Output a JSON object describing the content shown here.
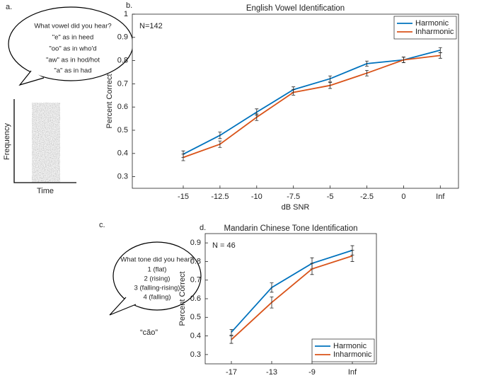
{
  "panels": {
    "a": {
      "label": "a.",
      "bubble": [
        "What vowel did you hear?",
        "\"e\" as in heed",
        "\"oo\" as in who'd",
        "\"aw\" as in hod/hot",
        "\"a\" as in had"
      ],
      "y_label": "Frequency",
      "x_label": "Time"
    },
    "c": {
      "label": "c.",
      "bubble": [
        "What tone did you hear?",
        "1 (flat)",
        "2 (rising)",
        "3 (falling-rising)",
        "4 (falling)"
      ],
      "word": "“cǎo”"
    }
  },
  "chart_data": [
    {
      "type": "line",
      "panel_label": "b.",
      "title": "English Vowel Identification",
      "x_label": "dB SNR",
      "y_label": "Percent Correct",
      "annotation": "N=142",
      "categories": [
        "-15",
        "-12.5",
        "-10",
        "-7.5",
        "-5",
        "-2.5",
        "0",
        "Inf"
      ],
      "series": [
        {
          "name": "Harmonic",
          "color": "#0072bd",
          "values": [
            0.397,
            0.478,
            0.578,
            0.675,
            0.722,
            0.787,
            0.803,
            0.845
          ],
          "errors": [
            0.014,
            0.014,
            0.014,
            0.012,
            0.012,
            0.011,
            0.012,
            0.011
          ]
        },
        {
          "name": "Inharmonic",
          "color": "#d95319",
          "values": [
            0.383,
            0.44,
            0.556,
            0.663,
            0.693,
            0.746,
            0.803,
            0.822
          ],
          "errors": [
            0.014,
            0.014,
            0.014,
            0.012,
            0.013,
            0.012,
            0.012,
            0.012
          ]
        }
      ],
      "ylim": [
        0.25,
        1
      ],
      "yticks": [
        0.3,
        0.4,
        0.5,
        0.6,
        0.7,
        0.8,
        0.9,
        1
      ],
      "legend": "upper right"
    },
    {
      "type": "line",
      "panel_label": "d.",
      "title": "Mandarin Chinese Tone Identification",
      "x_label": "dB SNR",
      "y_label": "Percent Correct",
      "annotation": "N = 46",
      "categories": [
        "-17",
        "-13",
        "-9",
        "Inf"
      ],
      "series": [
        {
          "name": "Harmonic",
          "color": "#0072bd",
          "values": [
            0.42,
            0.66,
            0.79,
            0.86
          ],
          "errors": [
            0.015,
            0.025,
            0.03,
            0.025
          ]
        },
        {
          "name": "Inharmonic",
          "color": "#d95319",
          "values": [
            0.38,
            0.58,
            0.76,
            0.83
          ],
          "errors": [
            0.02,
            0.03,
            0.03,
            0.03
          ]
        }
      ],
      "ylim": [
        0.25,
        0.95
      ],
      "yticks": [
        0.3,
        0.4,
        0.5,
        0.6,
        0.7,
        0.8,
        0.9
      ],
      "legend": "lower right"
    }
  ]
}
